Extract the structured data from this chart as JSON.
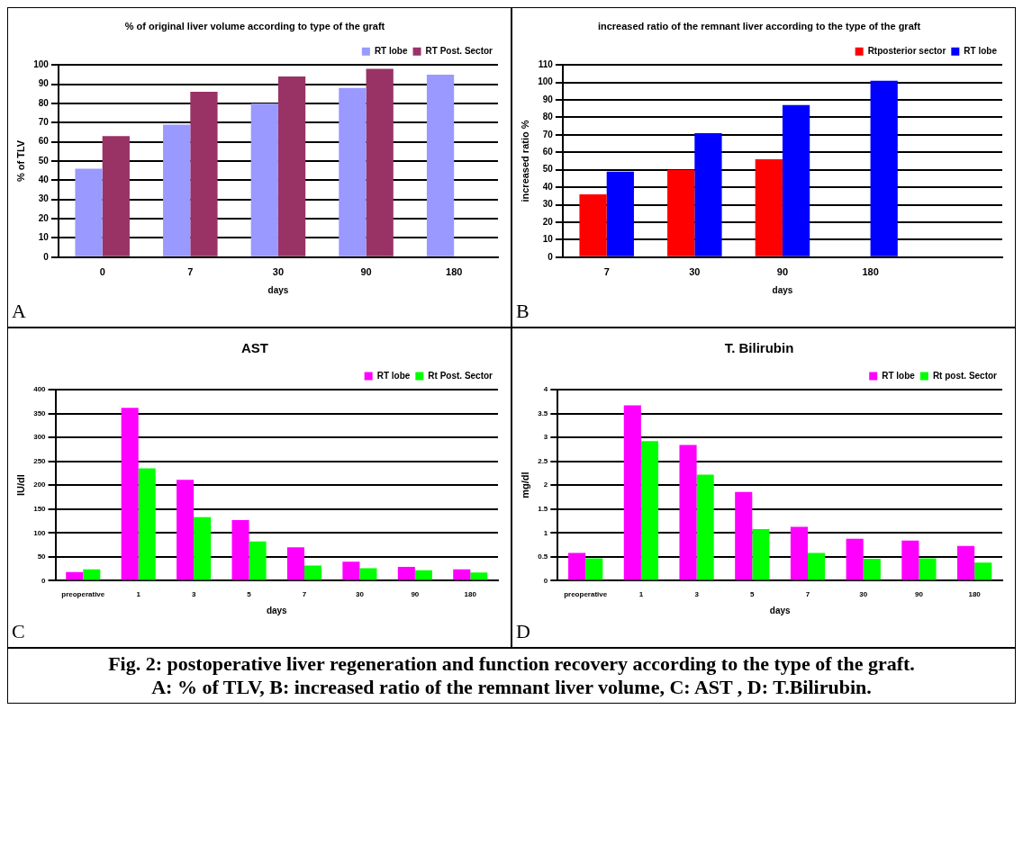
{
  "chart_data": [
    {
      "type": "bar",
      "title": "% of original liver volume according to type of the graft",
      "ylabel": "% of TLV",
      "xlabel": "days",
      "annotations": [
        "A"
      ],
      "categories": [
        "0",
        "7",
        "30",
        "90",
        "180"
      ],
      "series": [
        {
          "name": "RT lobe",
          "color": "#9999ff",
          "values": [
            46,
            69,
            80,
            88,
            95
          ]
        },
        {
          "name": "RT Post. Sector",
          "color": "#993366",
          "values": [
            63,
            86,
            94,
            98,
            null
          ]
        }
      ],
      "ylim": [
        0,
        100
      ],
      "yticks": [
        0,
        10,
        20,
        30,
        40,
        50,
        60,
        70,
        80,
        90,
        100
      ],
      "grid": "y",
      "legend": "top right"
    },
    {
      "type": "bar",
      "title": "increased ratio of the remnant liver according to the type of the graft",
      "ylabel": "increased ratio %",
      "xlabel": "days",
      "annotations": [
        "B"
      ],
      "categories": [
        "7",
        "30",
        "90",
        "180",
        null
      ],
      "series": [
        {
          "name": "Rtposterior sector",
          "color": "#ff0000",
          "values": [
            36,
            50,
            56,
            null,
            null
          ]
        },
        {
          "name": "RT lobe",
          "color": "#0000ff",
          "values": [
            49,
            71,
            87,
            101,
            null
          ]
        }
      ],
      "ylim": [
        0,
        110
      ],
      "yticks": [
        0,
        10,
        20,
        30,
        40,
        50,
        60,
        70,
        80,
        90,
        100,
        110
      ],
      "grid": "y",
      "legend": "top right"
    },
    {
      "type": "bar",
      "title": "AST",
      "ylabel": "IU/dl",
      "xlabel": "days",
      "annotations": [
        "C"
      ],
      "categories": [
        "preoperative",
        "1",
        "3",
        "5",
        "7",
        "30",
        "90",
        "180"
      ],
      "series": [
        {
          "name": "RT lobe",
          "color": "#ff00ff",
          "values": [
            18,
            362,
            211,
            127,
            70,
            40,
            29,
            24
          ]
        },
        {
          "name": "Rt Post. Sector",
          "color": "#00ff00",
          "values": [
            24,
            235,
            133,
            82,
            32,
            26,
            22,
            17
          ]
        }
      ],
      "ylim": [
        0,
        400
      ],
      "yticks": [
        0,
        50,
        100,
        150,
        200,
        250,
        300,
        350,
        400
      ],
      "grid": "y",
      "legend": "top right"
    },
    {
      "type": "bar",
      "title": "T. Bilirubin",
      "ylabel": "mg/dl",
      "xlabel": "days",
      "annotations": [
        "D"
      ],
      "categories": [
        "preoperative",
        "1",
        "3",
        "5",
        "7",
        "30",
        "90",
        "180"
      ],
      "series": [
        {
          "name": "RT lobe",
          "color": "#ff00ff",
          "values": [
            0.58,
            3.67,
            2.84,
            1.86,
            1.13,
            0.88,
            0.84,
            0.73
          ]
        },
        {
          "name": "Rt post. Sector",
          "color": "#00ff00",
          "values": [
            0.47,
            2.92,
            2.22,
            1.08,
            0.58,
            0.46,
            0.47,
            0.38
          ]
        }
      ],
      "ylim": [
        0,
        4
      ],
      "yticks": [
        0,
        0.5,
        1,
        1.5,
        2,
        2.5,
        3,
        3.5,
        4
      ],
      "grid": "y",
      "legend": "top right"
    },
    {
      "type": "other",
      "annotations": [
        "Fig. 2: postoperative liver regeneration and function recovery according to the type of the graft.",
        "A: % of TLV, B: increased ratio of the remnant liver volume, C: AST , D: T.Bilirubin."
      ]
    }
  ]
}
